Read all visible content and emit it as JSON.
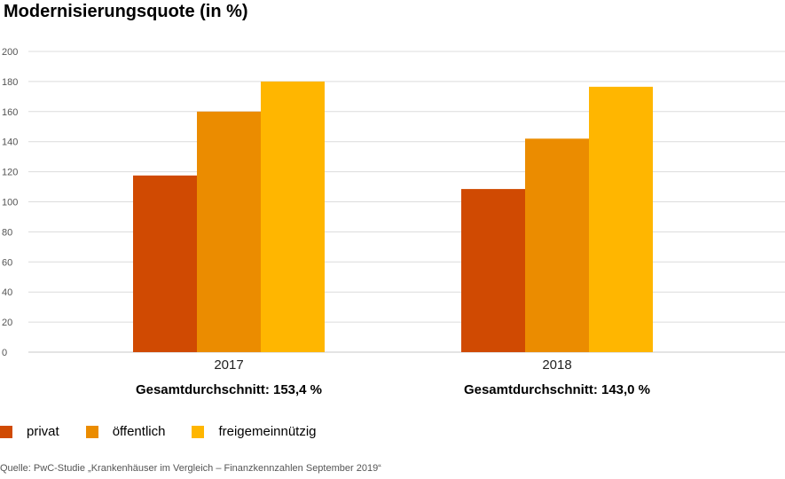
{
  "title": "Modernisierungsquote (in %)",
  "chart_data": {
    "type": "bar",
    "categories": [
      "2017",
      "2018"
    ],
    "series": [
      {
        "name": "privat",
        "color": "#D04A02",
        "values": [
          117.5,
          108.5
        ]
      },
      {
        "name": "öffentlich",
        "color": "#EB8C00",
        "values": [
          160,
          142
        ]
      },
      {
        "name": "freigemeinnützig",
        "color": "#FFB600",
        "values": [
          180,
          176.5
        ]
      }
    ],
    "ylim": [
      0,
      200
    ],
    "yticks": [
      0,
      20,
      40,
      60,
      80,
      100,
      120,
      140,
      160,
      180,
      200
    ],
    "grid": true,
    "legend_position": "bottom-left",
    "annotations": [
      "Gesamtdurchschnitt: 153,4 %",
      "Gesamtdurchschnitt: 143,0 %"
    ]
  },
  "source": "Quelle: PwC-Studie „Krankenhäuser im Vergleich – Finanzkennzahlen September 2019“"
}
